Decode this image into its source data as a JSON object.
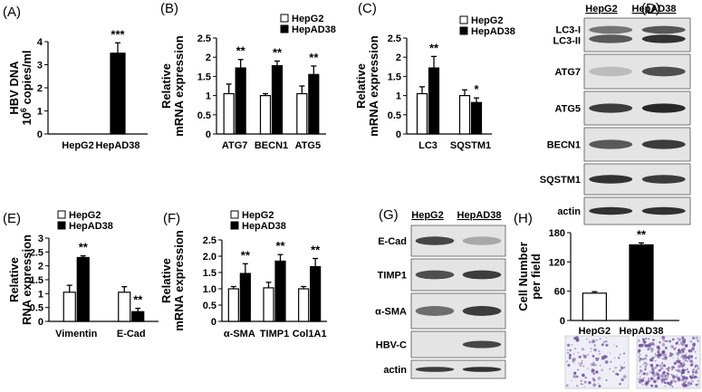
{
  "colors": {
    "hepg2": "#ffffff",
    "hepad38": "#000000",
    "stroke": "#000000",
    "blot_bg": "#e4e4e4",
    "band": "#1e1e1e",
    "micro_bg": "#eeeef6",
    "micro_dot": "#6c4e9c"
  },
  "legend": {
    "hepg2": "HepG2",
    "hepad38": "HepAD38"
  },
  "chart_data": [
    {
      "id": "A",
      "type": "bar",
      "panel_label": "(A)",
      "ylabel_lines": [
        "HBV DNA",
        "10^6 copies/ml"
      ],
      "categories": [
        "HepG2",
        "HepAD38"
      ],
      "series": [
        {
          "name": "Cells",
          "values": [
            0,
            3.5
          ],
          "errors": [
            0,
            0.45
          ],
          "fills": [
            "#ffffff",
            "#000000"
          ]
        }
      ],
      "ylim": [
        0,
        4
      ],
      "yticks": [
        "0",
        "1",
        "2",
        "3",
        "4"
      ],
      "significance": [
        "",
        "***"
      ]
    },
    {
      "id": "B",
      "type": "bar",
      "panel_label": "(B)",
      "ylabel_lines": [
        "Relative",
        "mRNA expression"
      ],
      "categories": [
        "ATG7",
        "BECN1",
        "ATG5"
      ],
      "series": [
        {
          "name": "HepG2",
          "values": [
            1.05,
            1.0,
            1.05
          ],
          "errors": [
            0.25,
            0.05,
            0.2
          ]
        },
        {
          "name": "HepAD38",
          "values": [
            1.72,
            1.78,
            1.55
          ],
          "errors": [
            0.22,
            0.12,
            0.22
          ]
        }
      ],
      "ylim": [
        0,
        2.5
      ],
      "yticks": [
        "0",
        "0.5",
        "1",
        "1.5",
        "2",
        "2.5"
      ],
      "significance": [
        "**",
        "**",
        "**"
      ]
    },
    {
      "id": "C",
      "type": "bar",
      "panel_label": "(C)",
      "ylabel_lines": [
        "Relative",
        "mRNA expression"
      ],
      "categories": [
        "LC3",
        "SQSTM1"
      ],
      "series": [
        {
          "name": "HepG2",
          "values": [
            1.05,
            1.0
          ],
          "errors": [
            0.18,
            0.15
          ]
        },
        {
          "name": "HepAD38",
          "values": [
            1.72,
            0.82
          ],
          "errors": [
            0.3,
            0.12
          ]
        }
      ],
      "ylim": [
        0,
        2.5
      ],
      "yticks": [
        "0",
        "0.5",
        "1",
        "1.5",
        "2",
        "2.5"
      ],
      "significance": [
        "**",
        "*"
      ]
    },
    {
      "id": "E",
      "type": "bar",
      "panel_label": "(E)",
      "ylabel_lines": [
        "Relative",
        "RNA expression"
      ],
      "categories": [
        "Vimentin",
        "E-Cad"
      ],
      "series": [
        {
          "name": "HepG2",
          "values": [
            1.05,
            1.05
          ],
          "errors": [
            0.25,
            0.2
          ]
        },
        {
          "name": "HepAD38",
          "values": [
            2.3,
            0.35
          ],
          "errors": [
            0.06,
            0.12
          ]
        }
      ],
      "ylim": [
        0,
        3
      ],
      "yticks": [
        "0",
        "0.5",
        "1",
        "1.5",
        "2",
        "2.5",
        "3"
      ],
      "significance": [
        "**",
        "**"
      ]
    },
    {
      "id": "F",
      "type": "bar",
      "panel_label": "(F)",
      "ylabel_lines": [
        "Relative",
        "mRNA expression"
      ],
      "categories": [
        "α-SMA",
        "TIMP1",
        "Col1A1"
      ],
      "series": [
        {
          "name": "HepG2",
          "values": [
            1.0,
            1.03,
            1.0
          ],
          "errors": [
            0.07,
            0.17,
            0.07
          ]
        },
        {
          "name": "HepAD38",
          "values": [
            1.47,
            1.85,
            1.68
          ],
          "errors": [
            0.3,
            0.2,
            0.25
          ]
        }
      ],
      "ylim": [
        0,
        2.5
      ],
      "yticks": [
        "0",
        "0.5",
        "1.0",
        "1.5",
        "2.0",
        "2.5"
      ],
      "significance": [
        "**",
        "**",
        "**"
      ]
    },
    {
      "id": "H",
      "type": "bar",
      "panel_label": "(H)",
      "ylabel_lines": [
        "Cell Number",
        "per field"
      ],
      "categories": [
        "HepG2",
        "HepAD38"
      ],
      "series": [
        {
          "name": "Cells",
          "values": [
            56,
            155
          ],
          "errors": [
            3,
            4
          ],
          "fills": [
            "#ffffff",
            "#000000"
          ]
        }
      ],
      "ylim": [
        0,
        180
      ],
      "yticks": [
        "0",
        "60",
        "120",
        "180"
      ],
      "significance": [
        "",
        "**"
      ]
    }
  ],
  "blots": [
    {
      "id": "D",
      "panel_label": "(D)",
      "headers": [
        "HepG2",
        "HepAD38"
      ],
      "rows": [
        {
          "label": "LC3-I\nLC3-II",
          "bands": [
            0.7,
            0.9
          ]
        },
        {
          "label": "ATG7",
          "bands": [
            0.2,
            0.75
          ]
        },
        {
          "label": "ATG5",
          "bands": [
            0.85,
            0.95
          ]
        },
        {
          "label": "BECN1",
          "bands": [
            0.7,
            0.85
          ]
        },
        {
          "label": "SQSTM1",
          "bands": [
            0.9,
            0.85
          ]
        },
        {
          "label": "actin",
          "bands": [
            0.9,
            0.9
          ]
        }
      ]
    },
    {
      "id": "G",
      "panel_label": "(G)",
      "headers": [
        "HepG2",
        "HepAD38"
      ],
      "rows": [
        {
          "label": "E-Cad",
          "bands": [
            0.8,
            0.3
          ]
        },
        {
          "label": "TIMP1",
          "bands": [
            0.75,
            0.85
          ]
        },
        {
          "label": "α-SMA",
          "bands": [
            0.6,
            0.85
          ]
        },
        {
          "label": "HBV-C",
          "bands": [
            0.0,
            0.8
          ]
        },
        {
          "label": "actin",
          "bands": [
            0.85,
            0.9
          ]
        }
      ]
    }
  ]
}
